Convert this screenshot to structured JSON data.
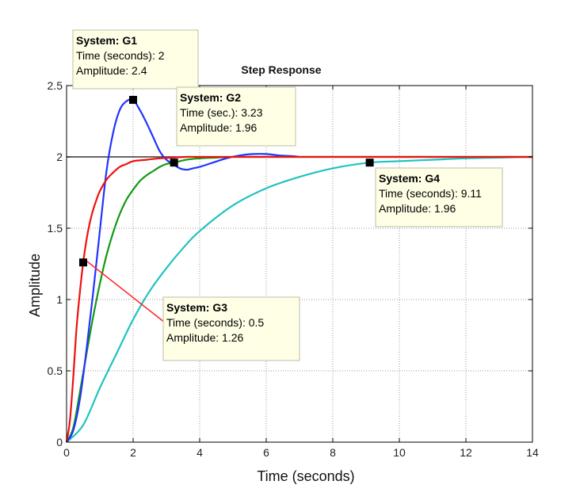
{
  "chart_data": {
    "type": "line",
    "title": "Step Response",
    "xlabel": "Time (seconds)",
    "ylabel": "Amplitude",
    "xlim": [
      0,
      14
    ],
    "ylim": [
      0,
      2.5
    ],
    "xticks": [
      "0",
      "2",
      "4",
      "6",
      "8",
      "10",
      "12",
      "14"
    ],
    "yticks": [
      "0",
      "0.5",
      "1",
      "1.5",
      "2",
      "2.5"
    ],
    "grid": true,
    "reference_line": 2,
    "series": [
      {
        "name": "G1",
        "color": "#2233ff",
        "x": [
          0,
          0.2,
          0.4,
          0.6,
          0.8,
          1.0,
          1.2,
          1.4,
          1.6,
          1.8,
          2.0,
          2.2,
          2.4,
          2.6,
          2.8,
          3.0,
          3.2,
          3.4,
          3.6,
          3.8,
          4.0,
          4.4,
          4.8,
          5.2,
          5.6,
          6.0,
          6.4,
          6.8,
          7.0
        ],
        "y": [
          0,
          0.08,
          0.3,
          0.65,
          1.05,
          1.48,
          1.9,
          2.17,
          2.33,
          2.39,
          2.4,
          2.33,
          2.24,
          2.14,
          2.04,
          1.98,
          1.95,
          1.92,
          1.91,
          1.92,
          1.93,
          1.96,
          1.99,
          2.01,
          2.02,
          2.02,
          2.01,
          2.005,
          2.0
        ]
      },
      {
        "name": "G2",
        "color": "#119911",
        "x": [
          0,
          0.2,
          0.4,
          0.6,
          0.8,
          1.0,
          1.2,
          1.4,
          1.6,
          1.8,
          2.0,
          2.2,
          2.4,
          2.6,
          2.8,
          3.0,
          3.23,
          3.6,
          4.0,
          4.5,
          5.0,
          6.0,
          14.0
        ],
        "y": [
          0,
          0.1,
          0.35,
          0.62,
          0.88,
          1.11,
          1.31,
          1.47,
          1.6,
          1.7,
          1.77,
          1.83,
          1.87,
          1.9,
          1.93,
          1.95,
          1.96,
          1.98,
          1.99,
          1.995,
          2.0,
          2.0,
          2.0
        ]
      },
      {
        "name": "G3",
        "color": "#ee1111",
        "x": [
          0,
          0.1,
          0.2,
          0.3,
          0.4,
          0.5,
          0.6,
          0.7,
          0.8,
          0.9,
          1.0,
          1.2,
          1.4,
          1.6,
          1.8,
          2.0,
          2.4,
          2.8,
          3.2,
          3.6,
          4.0,
          5.0,
          6.0,
          14.0
        ],
        "y": [
          0,
          0.15,
          0.45,
          0.8,
          1.05,
          1.26,
          1.42,
          1.54,
          1.63,
          1.7,
          1.76,
          1.84,
          1.89,
          1.93,
          1.95,
          1.97,
          1.98,
          1.99,
          1.995,
          2.0,
          2.0,
          2.0,
          2.0,
          2.0
        ]
      },
      {
        "name": "G4",
        "color": "#22c2c2",
        "x": [
          0,
          0.5,
          1.0,
          1.5,
          2.0,
          2.5,
          3.0,
          3.5,
          4.0,
          5.0,
          6.0,
          7.0,
          8.0,
          9.11,
          10.0,
          11.0,
          12.0,
          13.0,
          14.0
        ],
        "y": [
          0,
          0.12,
          0.38,
          0.62,
          0.86,
          1.06,
          1.22,
          1.36,
          1.48,
          1.66,
          1.78,
          1.86,
          1.92,
          1.96,
          1.97,
          1.98,
          1.99,
          1.995,
          2.0
        ]
      }
    ],
    "datatips": [
      {
        "series": "G1",
        "x": 2,
        "y": 2.4,
        "lines": [
          "System: G1",
          "Time (seconds): 2",
          "Amplitude: 2.4"
        ]
      },
      {
        "series": "G2",
        "x": 3.23,
        "y": 1.96,
        "lines": [
          "System: G2",
          "Time (sec.): 3.23",
          "Amplitude: 1.96"
        ]
      },
      {
        "series": "G3",
        "x": 0.5,
        "y": 1.26,
        "lines": [
          "System: G3",
          "Time (seconds): 0.5",
          " Amplitude: 1.26"
        ]
      },
      {
        "series": "G4",
        "x": 9.11,
        "y": 1.96,
        "lines": [
          "System: G4",
          "Time (seconds): 9.11",
          "Amplitude: 1.96"
        ]
      }
    ]
  }
}
